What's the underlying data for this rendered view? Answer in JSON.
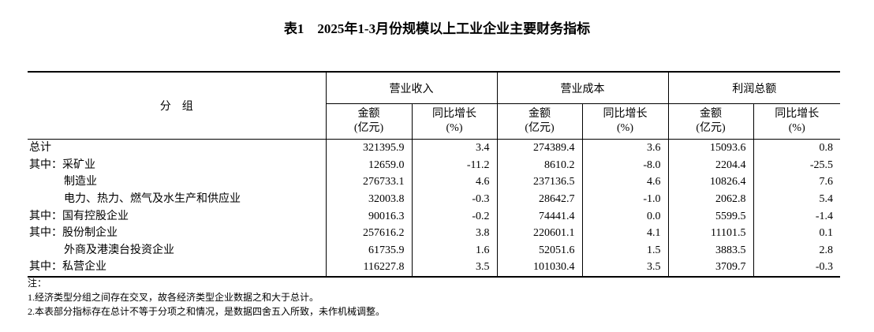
{
  "title": "表1　2025年1-3月份规模以上工业企业主要财务指标",
  "header": {
    "group_label": "分　组",
    "groups": [
      "营业收入",
      "营业成本",
      "利润总额"
    ],
    "columns": [
      {
        "label": "金额",
        "unit": "(亿元)"
      },
      {
        "label": "同比增长",
        "unit": "(%)"
      },
      {
        "label": "金额",
        "unit": "(亿元)"
      },
      {
        "label": "同比增长",
        "unit": "(%)"
      },
      {
        "label": "金额",
        "unit": "(亿元)"
      },
      {
        "label": "同比增长",
        "unit": "(%)"
      }
    ]
  },
  "table": {
    "rows": [
      [
        "总计",
        "321395.9",
        "3.4",
        "274389.4",
        "3.6",
        "15093.6",
        "0.8"
      ],
      [
        "其中：采矿业",
        "12659.0",
        "-11.2",
        "8610.2",
        "-8.0",
        "2204.4",
        "-25.5"
      ],
      [
        "制造业",
        "276733.1",
        "4.6",
        "237136.5",
        "4.6",
        "10826.4",
        "7.6"
      ],
      [
        "电力、热力、燃气及水生产和供应业",
        "32003.8",
        "-0.3",
        "28642.7",
        "-1.0",
        "2062.8",
        "5.4"
      ],
      [
        "其中：国有控股企业",
        "90016.3",
        "-0.2",
        "74441.4",
        "0.0",
        "5599.5",
        "-1.4"
      ],
      [
        "其中：股份制企业",
        "257616.2",
        "3.8",
        "220601.1",
        "4.1",
        "11101.5",
        "0.1"
      ],
      [
        "外商及港澳台投资企业",
        "61735.9",
        "1.6",
        "52051.6",
        "1.5",
        "3883.5",
        "2.8"
      ],
      [
        "其中：私营企业",
        "116227.8",
        "3.5",
        "101030.4",
        "3.5",
        "3709.7",
        "-0.3"
      ]
    ]
  },
  "notes": {
    "heading": "注：",
    "items": [
      "1.经济类型分组之间存在交叉，故各经济类型企业数据之和大于总计。",
      "2.本表部分指标存在总计不等于分项之和情况，是数据四舍五入所致，未作机械调整。"
    ]
  }
}
